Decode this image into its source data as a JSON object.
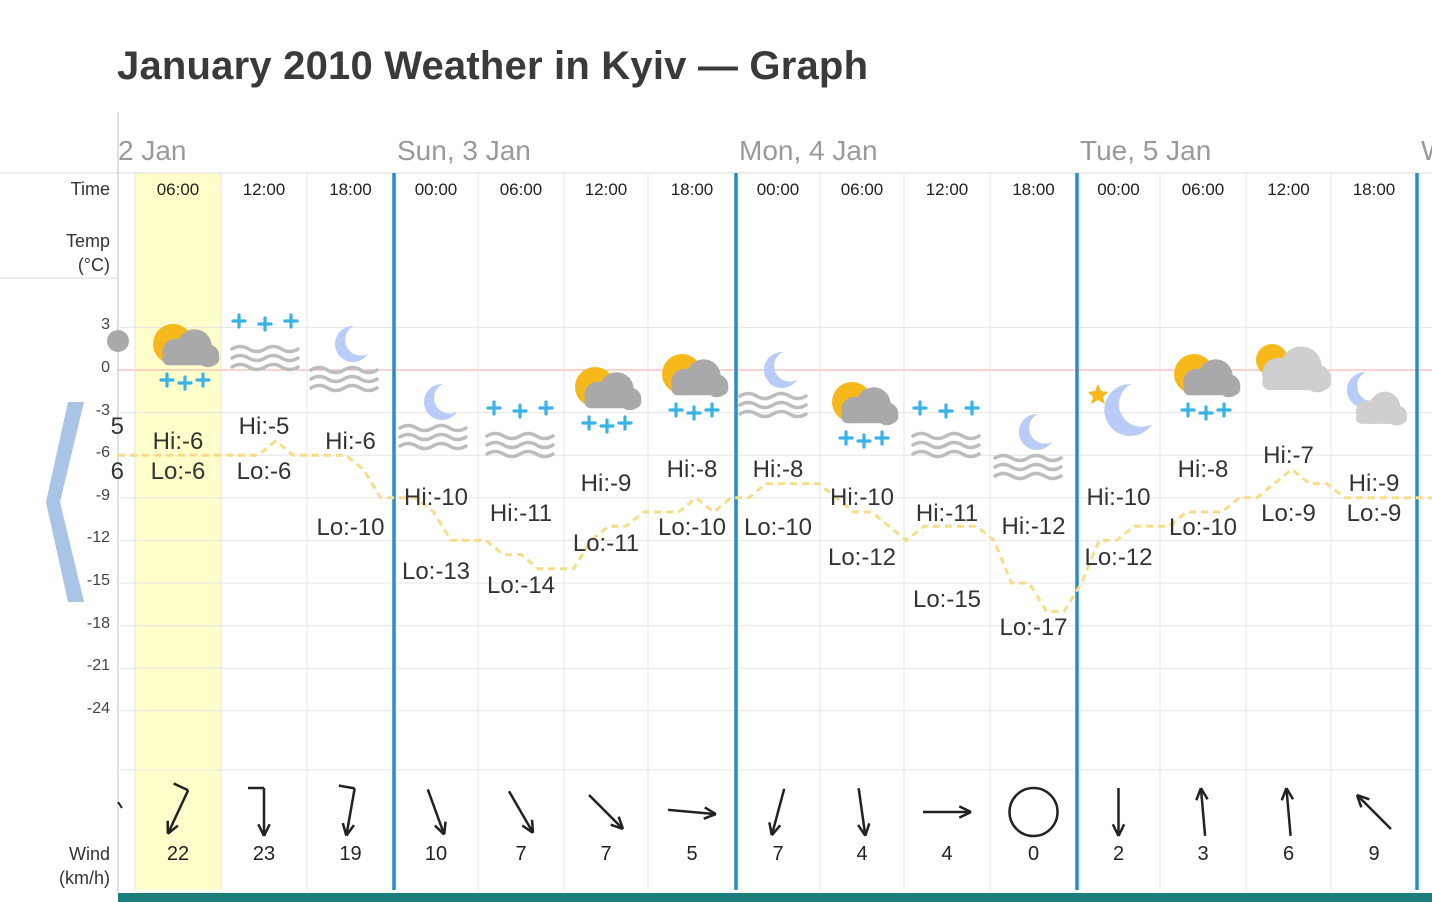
{
  "page": {
    "title": "January 2010 Weather in Kyiv — Graph"
  },
  "row_labels": {
    "time": "Time",
    "temp": "Temp",
    "temp_unit": "(°C)",
    "wind": "Wind",
    "wind_unit": "(km/h)"
  },
  "y_ticks": [
    "3",
    "0",
    "-3",
    "-6",
    "-9",
    "-12",
    "-15",
    "-18",
    "-21",
    "-24"
  ],
  "days": [
    {
      "label": "2 Jan"
    },
    {
      "label": "Sun, 3 Jan"
    },
    {
      "label": "Mon, 4 Jan"
    },
    {
      "label": "Tue, 5 Jan"
    },
    {
      "label": "W"
    }
  ],
  "partial_left": {
    "hi": "5",
    "lo": "6",
    "wind_arrow": "small-arrow-icon"
  },
  "slots": [
    {
      "time": "06:00",
      "hi": "Hi:-6",
      "lo": "Lo:-6",
      "wind": "22",
      "icon": "partly-sunny-snow-icon",
      "highlight": true
    },
    {
      "time": "12:00",
      "hi": "Hi:-5",
      "lo": "Lo:-6",
      "wind": "23",
      "icon": "fog-snow-icon"
    },
    {
      "time": "18:00",
      "hi": "Hi:-6",
      "lo": "Lo:-10",
      "wind": "19",
      "icon": "moon-fog-icon"
    },
    {
      "time": "00:00",
      "hi": "Hi:-10",
      "lo": "Lo:-13",
      "wind": "10",
      "icon": "moon-fog-icon"
    },
    {
      "time": "06:00",
      "hi": "Hi:-11",
      "lo": "Lo:-14",
      "wind": "7",
      "icon": "fog-snow-icon"
    },
    {
      "time": "12:00",
      "hi": "Hi:-9",
      "lo": "Lo:-11",
      "wind": "7",
      "icon": "partly-sunny-snow-icon"
    },
    {
      "time": "18:00",
      "hi": "Hi:-8",
      "lo": "Lo:-10",
      "wind": "5",
      "icon": "partly-sunny-snow-icon"
    },
    {
      "time": "00:00",
      "hi": "Hi:-8",
      "lo": "Lo:-10",
      "wind": "7",
      "icon": "moon-fog-icon"
    },
    {
      "time": "06:00",
      "hi": "Hi:-10",
      "lo": "Lo:-12",
      "wind": "4",
      "icon": "partly-sunny-snow-icon"
    },
    {
      "time": "12:00",
      "hi": "Hi:-11",
      "lo": "Lo:-15",
      "wind": "4",
      "icon": "fog-snow-icon"
    },
    {
      "time": "18:00",
      "hi": "Hi:-12",
      "lo": "Lo:-17",
      "wind": "0",
      "icon": "moon-fog-icon"
    },
    {
      "time": "00:00",
      "hi": "Hi:-10",
      "lo": "Lo:-12",
      "wind": "2",
      "icon": "moon-star-icon"
    },
    {
      "time": "06:00",
      "hi": "Hi:-8",
      "lo": "Lo:-10",
      "wind": "3",
      "icon": "partly-sunny-snow-icon"
    },
    {
      "time": "12:00",
      "hi": "Hi:-7",
      "lo": "Lo:-9",
      "wind": "6",
      "icon": "partly-sunny-cloud-icon"
    },
    {
      "time": "18:00",
      "hi": "Hi:-9",
      "lo": "Lo:-9",
      "wind": "9",
      "icon": "moon-cloud-icon"
    }
  ],
  "colors": {
    "day_divider": "#2a8bc9",
    "temp_line": "#f6dd8a",
    "highlight": "#ffffcc",
    "zero_line": "#f3a6a6",
    "bottom_bar": "#1a7f7b",
    "nav_arrow": "#a9c4e6"
  },
  "chart_data": {
    "type": "line",
    "title": "",
    "ylabel": "Temp (°C)",
    "ylim": [
      -27,
      4
    ],
    "series": [
      {
        "values": [
          -6,
          -6,
          -6,
          -6,
          -6,
          -6,
          -6,
          -6,
          -6,
          -5,
          -6,
          -6,
          -6,
          -6,
          -7,
          -9,
          -9,
          -9,
          -10,
          -12,
          -12,
          -12,
          -13,
          -13,
          -14,
          -14,
          -14,
          -12,
          -11,
          -11,
          -10,
          -10,
          -10,
          -9,
          -10,
          -9,
          -9,
          -8,
          -8,
          -8,
          -8,
          -9,
          -10,
          -10,
          -11,
          -12,
          -11,
          -11,
          -11,
          -11,
          -12,
          -15,
          -15,
          -17,
          -17,
          -15,
          -12,
          -12,
          -11,
          -11,
          -11,
          -10,
          -10,
          -10,
          -9,
          -9,
          -8,
          -7,
          -8,
          -8,
          -9,
          -9,
          -9,
          -9,
          -9,
          -9
        ]
      }
    ]
  }
}
